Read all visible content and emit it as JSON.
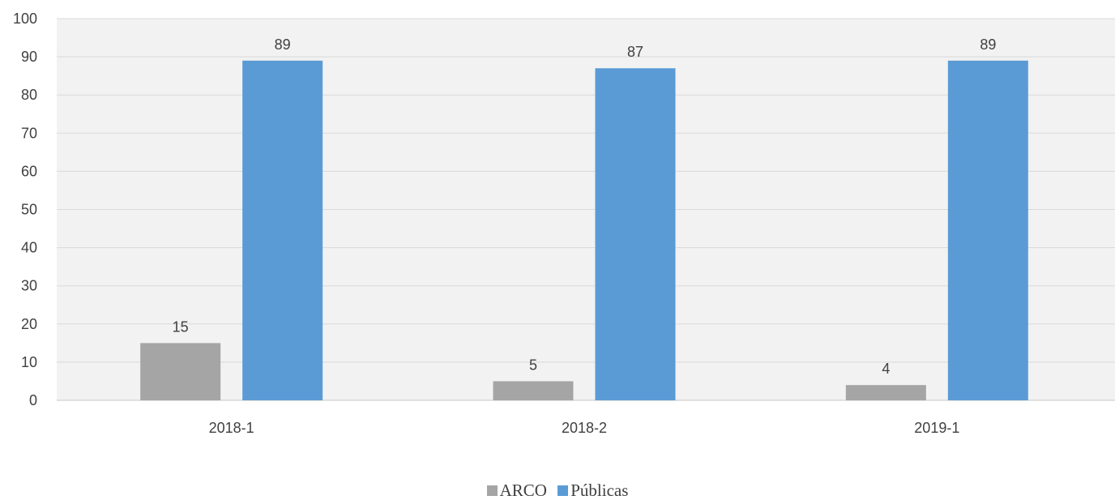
{
  "chart_data": {
    "type": "bar",
    "categories": [
      "2018-1",
      "2018-2",
      "2019-1"
    ],
    "series": [
      {
        "name": "ARCO",
        "values": [
          15,
          5,
          4
        ],
        "color": "#a5a5a5"
      },
      {
        "name": "Públicas",
        "values": [
          89,
          87,
          89
        ],
        "color": "#5b9bd5"
      }
    ],
    "title": "",
    "xlabel": "",
    "ylabel": "",
    "ylim": [
      0,
      100
    ],
    "yticks": [
      0,
      10,
      20,
      30,
      40,
      50,
      60,
      70,
      80,
      90,
      100
    ],
    "data_labels": true,
    "grid": true,
    "legend_position": "bottom",
    "plot_background": "#f2f2f2"
  }
}
